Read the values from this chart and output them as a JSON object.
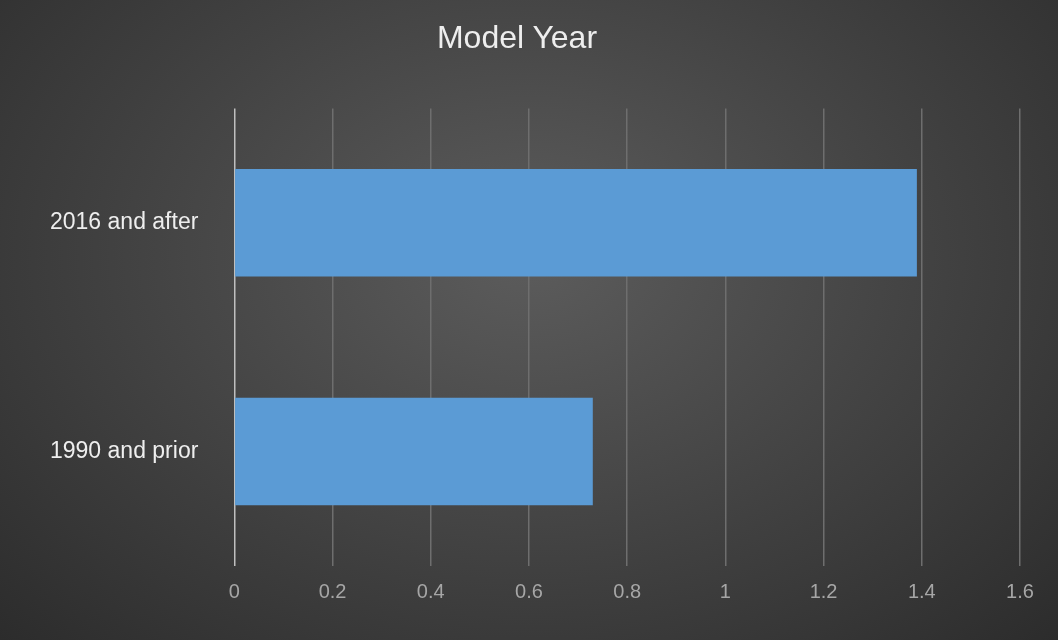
{
  "chart_data": {
    "type": "bar",
    "orientation": "horizontal",
    "title": "Model Year",
    "categories": [
      "2016 and after",
      "1990 and prior"
    ],
    "values": [
      1.39,
      0.73
    ],
    "color": "#5b9bd5",
    "xlim": [
      0,
      1.6
    ],
    "xticks": [
      0,
      0.2,
      0.4,
      0.6,
      0.8,
      1,
      1.2,
      1.4,
      1.6
    ],
    "grid": "x",
    "legend": false
  }
}
